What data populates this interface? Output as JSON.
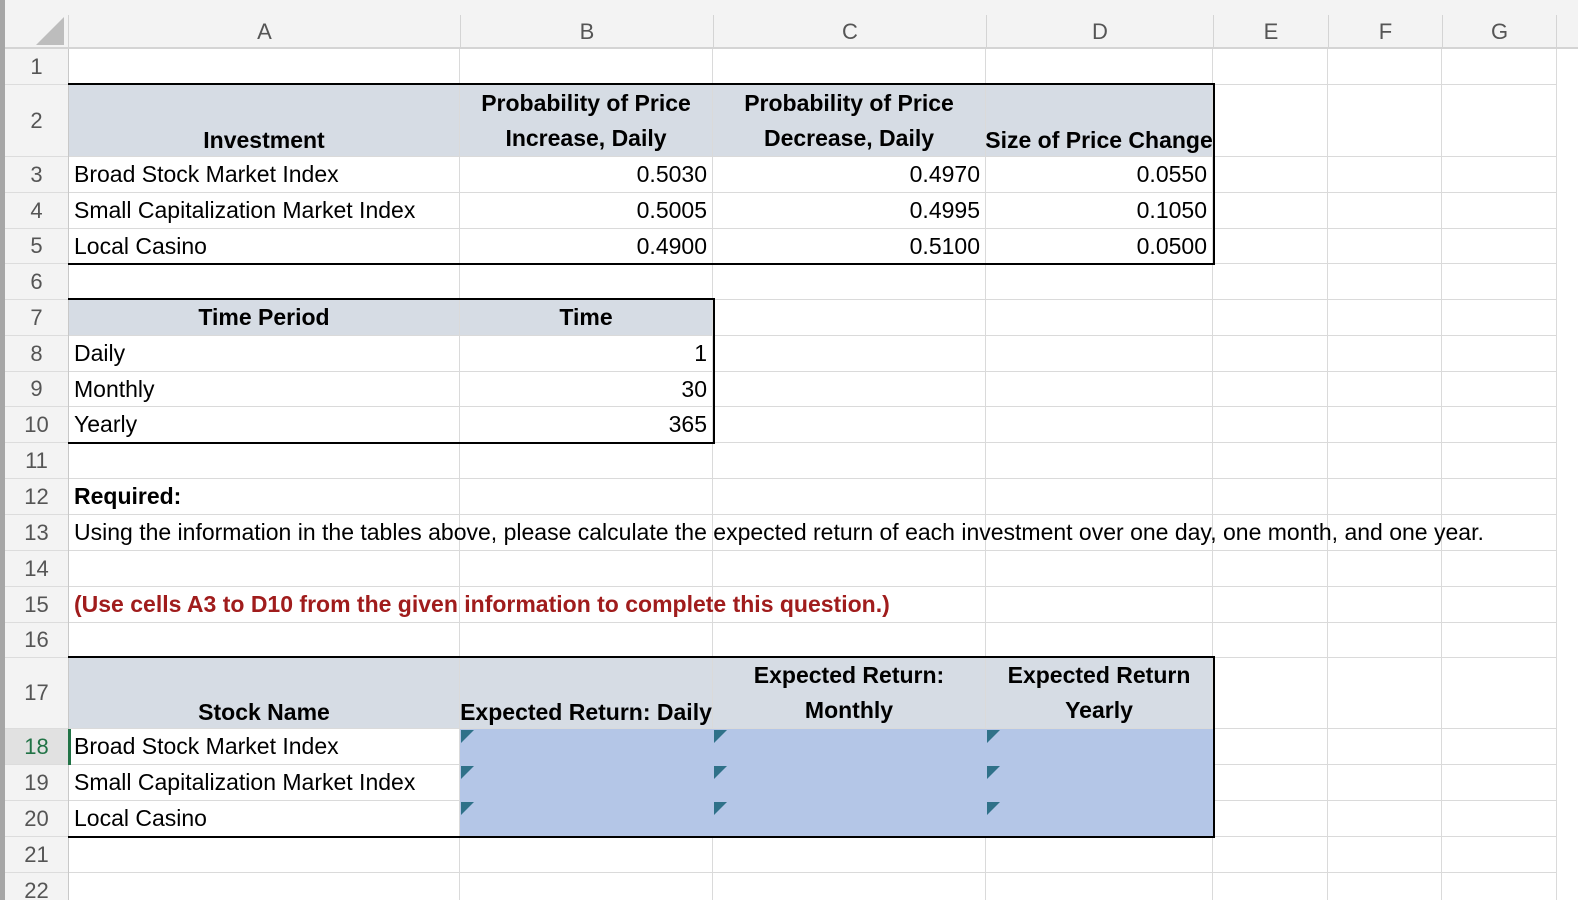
{
  "columns": [
    "A",
    "B",
    "C",
    "D",
    "E",
    "F",
    "G"
  ],
  "rows": [
    "1",
    "2",
    "3",
    "4",
    "5",
    "6",
    "7",
    "8",
    "9",
    "10",
    "11",
    "12",
    "13",
    "14",
    "15",
    "16",
    "17",
    "18",
    "19",
    "20",
    "21",
    "22"
  ],
  "active_row": "18",
  "investment_table": {
    "headers": {
      "investment": "Investment",
      "prob_increase_l1": "Probability of Price",
      "prob_increase_l2": "Increase, Daily",
      "prob_decrease_l1": "Probability of Price",
      "prob_decrease_l2": "Decrease, Daily",
      "size_change": "Size of Price Change"
    },
    "rows": [
      {
        "name": "Broad Stock Market Index",
        "prob_increase": "0.5030",
        "prob_decrease": "0.4970",
        "size_change": "0.0550"
      },
      {
        "name": "Small Capitalization Market Index",
        "prob_increase": "0.5005",
        "prob_decrease": "0.4995",
        "size_change": "0.1050"
      },
      {
        "name": "Local Casino",
        "prob_increase": "0.4900",
        "prob_decrease": "0.5100",
        "size_change": "0.0500"
      }
    ]
  },
  "time_table": {
    "headers": {
      "period": "Time Period",
      "time": "Time"
    },
    "rows": [
      {
        "period": "Daily",
        "time": "1"
      },
      {
        "period": "Monthly",
        "time": "30"
      },
      {
        "period": "Yearly",
        "time": "365"
      }
    ]
  },
  "instructions": {
    "required": "Required:",
    "question": "Using the information in the tables above, please calculate the expected return of each investment over one day, one month, and one year.",
    "note": "(Use cells A3 to D10 from the given information to complete this question.)"
  },
  "answer_table": {
    "headers": {
      "stock_name": "Stock Name",
      "daily": "Expected Return: Daily",
      "monthly_l1": "Expected Return:",
      "monthly_l2": "Monthly",
      "yearly_l1": "Expected Return",
      "yearly_l2": "Yearly"
    },
    "rows": [
      {
        "name": "Broad Stock Market Index",
        "daily": "",
        "monthly": "",
        "yearly": ""
      },
      {
        "name": "Small Capitalization Market Index",
        "daily": "",
        "monthly": "",
        "yearly": ""
      },
      {
        "name": "Local Casino",
        "daily": "",
        "monthly": "",
        "yearly": ""
      }
    ]
  },
  "colors": {
    "header_fill": "#d6dce4",
    "input_fill": "#b4c6e7",
    "note_red": "#a01c1c",
    "active_row_green": "#217346"
  }
}
